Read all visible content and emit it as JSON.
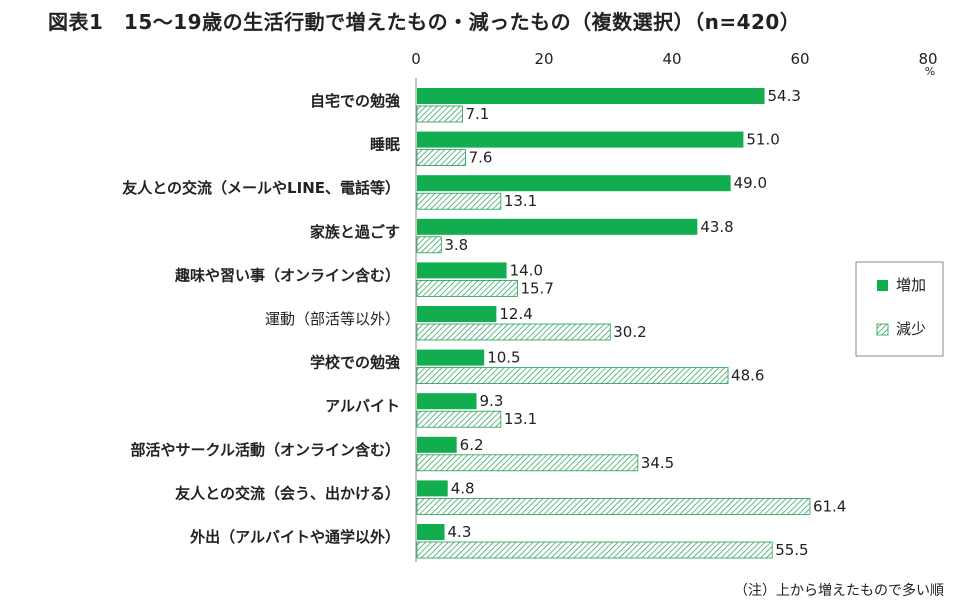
{
  "title": "図表1　15〜19歳の生活行動で増えたもの・減ったもの（複数選択）（n=420）",
  "note": "（注）上から増えたもので多い順",
  "colors": {
    "increase": "#12ad4e",
    "decrease_line": "#1e9e52",
    "axis": "#888888",
    "text": "#222222"
  },
  "chart_data": {
    "type": "bar",
    "orientation": "horizontal",
    "unit": "%",
    "xlim": [
      0,
      80
    ],
    "ticks": [
      "0",
      "20",
      "40",
      "60",
      "80"
    ],
    "tick_values": [
      0,
      20,
      40,
      60,
      80
    ],
    "categories": [
      "自宅での勉強",
      "睡眠",
      "友人との交流（メールやLINE、電話等）",
      "家族と過ごす",
      "趣味や習い事（オンライン含む）",
      "運動（部活等以外）",
      "学校での勉強",
      "アルバイト",
      "部活やサークル活動（オンライン含む）",
      "友人との交流（会う、出かける）",
      "外出（アルバイトや通学以外）"
    ],
    "bold_categories": [
      true,
      true,
      true,
      true,
      true,
      false,
      true,
      true,
      true,
      true,
      true
    ],
    "series": [
      {
        "name": "増加",
        "pattern": "solid",
        "values": [
          54.3,
          51.0,
          49.0,
          43.8,
          14.0,
          12.4,
          10.5,
          9.3,
          6.2,
          4.8,
          4.3
        ],
        "labels": [
          "54.3",
          "51.0",
          "49.0",
          "43.8",
          "14.0",
          "12.4",
          "10.5",
          "9.3",
          "6.2",
          "4.8",
          "4.3"
        ]
      },
      {
        "name": "減少",
        "pattern": "hatched",
        "values": [
          7.1,
          7.6,
          13.1,
          3.8,
          15.7,
          30.2,
          48.6,
          13.1,
          34.5,
          61.4,
          55.5
        ],
        "labels": [
          "7.1",
          "7.6",
          "13.1",
          "3.8",
          "15.7",
          "30.2",
          "48.6",
          "13.1",
          "34.5",
          "61.4",
          "55.5"
        ]
      }
    ],
    "legend": {
      "position": "right",
      "labels": [
        "増加",
        "減少"
      ]
    }
  }
}
